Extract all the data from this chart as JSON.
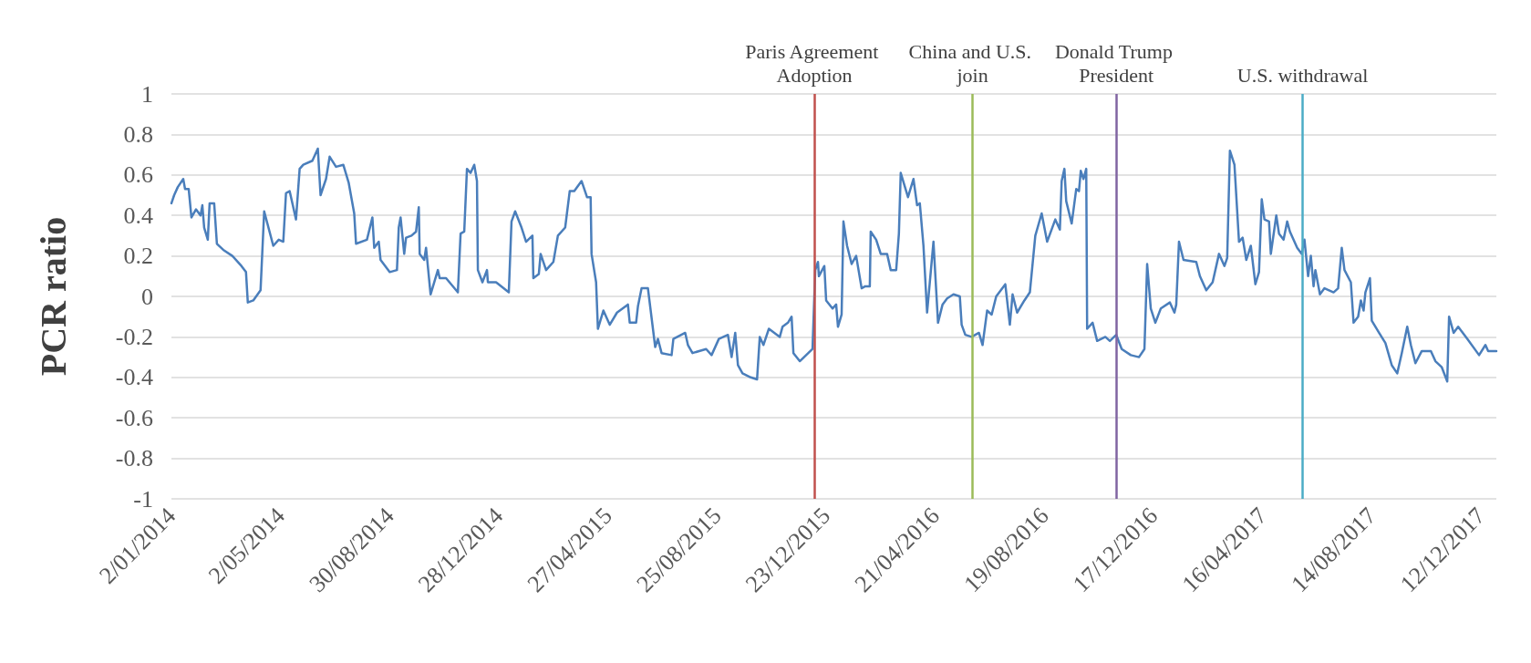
{
  "chart_data": {
    "type": "line",
    "ylabel": "PCR ratio",
    "xlim": [
      "2014-01-02",
      "2017-12-29"
    ],
    "xticks": [
      {
        "value": "2014-01-02",
        "label": "2/01/2014"
      },
      {
        "value": "2014-05-02",
        "label": "2/05/2014"
      },
      {
        "value": "2014-08-30",
        "label": "30/08/2014"
      },
      {
        "value": "2014-12-28",
        "label": "28/12/2014"
      },
      {
        "value": "2015-04-27",
        "label": "27/04/2015"
      },
      {
        "value": "2015-08-25",
        "label": "25/08/2015"
      },
      {
        "value": "2015-12-23",
        "label": "23/12/2015"
      },
      {
        "value": "2016-04-21",
        "label": "21/04/2016"
      },
      {
        "value": "2016-08-19",
        "label": "19/08/2016"
      },
      {
        "value": "2016-12-17",
        "label": "17/12/2016"
      },
      {
        "value": "2017-04-16",
        "label": "16/04/2017"
      },
      {
        "value": "2017-08-14",
        "label": "14/08/2017"
      },
      {
        "value": "2017-12-12",
        "label": "12/12/2017"
      }
    ],
    "ylim": [
      -1,
      1
    ],
    "yticks": [
      -1,
      -0.8,
      -0.6,
      -0.4,
      -0.2,
      0,
      0.2,
      0.4,
      0.6,
      0.8,
      1
    ],
    "grid": "y",
    "marker": "none",
    "line_style": "solid",
    "ref_lines": [
      {
        "axis": "x",
        "value": "2015-12-10",
        "label": "Paris Agreement Adoption",
        "color": "#c0504d"
      },
      {
        "axis": "x",
        "value": "2016-06-01",
        "label": "China and U.S. join",
        "color": "#9bbb59"
      },
      {
        "axis": "x",
        "value": "2016-11-06",
        "label": "Donald Trump President",
        "color": "#8064a2"
      },
      {
        "axis": "x",
        "value": "2017-05-30",
        "label": "U.S. withdrawal",
        "color": "#4bacc6"
      }
    ],
    "series": [
      {
        "color": "#4a7ebb",
        "x": [
          "2014-01-02",
          "2014-01-05",
          "2014-01-09",
          "2014-01-15",
          "2014-01-17",
          "2014-01-21",
          "2014-01-24",
          "2014-01-29",
          "2014-02-03",
          "2014-02-05",
          "2014-02-07",
          "2014-02-11",
          "2014-02-13",
          "2014-02-18",
          "2014-02-21",
          "2014-02-28",
          "2014-03-10",
          "2014-03-20",
          "2014-03-25",
          "2014-03-27",
          "2014-04-02",
          "2014-04-10",
          "2014-04-14",
          "2014-04-24",
          "2014-04-30",
          "2014-05-05",
          "2014-05-08",
          "2014-05-12",
          "2014-05-19",
          "2014-05-23",
          "2014-05-27",
          "2014-06-06",
          "2014-06-12",
          "2014-06-15",
          "2014-06-21",
          "2014-06-25",
          "2014-07-02",
          "2014-07-10",
          "2014-07-16",
          "2014-07-22",
          "2014-07-24",
          "2014-08-05",
          "2014-08-11",
          "2014-08-13",
          "2014-08-18",
          "2014-08-20",
          "2014-08-30",
          "2014-09-07",
          "2014-09-09",
          "2014-09-11",
          "2014-09-15",
          "2014-09-17",
          "2014-09-23",
          "2014-09-28",
          "2014-10-01",
          "2014-10-02",
          "2014-10-07",
          "2014-10-09",
          "2014-10-14",
          "2014-10-22",
          "2014-10-24",
          "2014-10-31",
          "2014-11-13",
          "2014-11-16",
          "2014-11-20",
          "2014-11-23",
          "2014-11-27",
          "2014-12-01",
          "2014-12-04",
          "2014-12-05",
          "2014-12-10",
          "2014-12-15",
          "2014-12-16",
          "2014-12-25",
          "2015-01-08",
          "2015-01-11",
          "2015-01-15",
          "2015-01-22",
          "2015-01-27",
          "2015-02-03",
          "2015-02-04",
          "2015-02-10",
          "2015-02-12",
          "2015-02-18",
          "2015-02-26",
          "2015-03-03",
          "2015-03-11",
          "2015-03-16",
          "2015-03-21",
          "2015-03-29",
          "2015-04-04",
          "2015-04-08",
          "2015-04-09",
          "2015-04-14",
          "2015-04-16",
          "2015-04-22",
          "2015-04-29",
          "2015-05-07",
          "2015-05-19",
          "2015-05-21",
          "2015-05-28",
          "2015-05-30",
          "2015-06-03",
          "2015-06-10",
          "2015-06-18",
          "2015-06-21",
          "2015-06-25",
          "2015-07-06",
          "2015-07-08",
          "2015-07-21",
          "2015-07-24",
          "2015-07-29",
          "2015-08-13",
          "2015-08-19",
          "2015-08-27",
          "2015-09-06",
          "2015-09-10",
          "2015-09-14",
          "2015-09-17",
          "2015-09-22",
          "2015-10-01",
          "2015-10-08",
          "2015-10-11",
          "2015-10-15",
          "2015-10-21",
          "2015-11-02",
          "2015-11-05",
          "2015-11-11",
          "2015-11-15",
          "2015-11-17",
          "2015-11-24",
          "2015-12-01",
          "2015-12-08",
          "2015-12-11",
          "2015-12-14",
          "2015-12-15",
          "2015-12-21",
          "2015-12-23",
          "2015-12-30",
          "2016-01-03",
          "2016-01-05",
          "2016-01-09",
          "2016-01-11",
          "2016-01-15",
          "2016-01-20",
          "2016-01-25",
          "2016-01-31",
          "2016-02-04",
          "2016-02-09",
          "2016-02-10",
          "2016-02-16",
          "2016-02-21",
          "2016-02-28",
          "2016-03-03",
          "2016-03-09",
          "2016-03-12",
          "2016-03-14",
          "2016-03-22",
          "2016-03-28",
          "2016-04-01",
          "2016-04-04",
          "2016-04-08",
          "2016-04-12",
          "2016-04-19",
          "2016-04-24",
          "2016-04-29",
          "2016-05-04",
          "2016-05-11",
          "2016-05-18",
          "2016-05-20",
          "2016-05-24",
          "2016-05-31",
          "2016-06-08",
          "2016-06-12",
          "2016-06-17",
          "2016-06-22",
          "2016-06-27",
          "2016-07-07",
          "2016-07-12",
          "2016-07-15",
          "2016-07-20",
          "2016-07-28",
          "2016-08-03",
          "2016-08-09",
          "2016-08-16",
          "2016-08-22",
          "2016-08-31",
          "2016-09-05",
          "2016-09-07",
          "2016-09-10",
          "2016-09-12",
          "2016-09-18",
          "2016-09-23",
          "2016-09-26",
          "2016-09-28",
          "2016-10-01",
          "2016-10-04",
          "2016-10-05",
          "2016-10-11",
          "2016-10-16",
          "2016-10-25",
          "2016-10-30",
          "2016-11-06",
          "2016-11-12",
          "2016-11-22",
          "2016-12-01",
          "2016-12-07",
          "2016-12-10",
          "2016-12-14",
          "2016-12-19",
          "2016-12-25",
          "2017-01-04",
          "2017-01-09",
          "2017-01-11",
          "2017-01-14",
          "2017-01-19",
          "2017-02-02",
          "2017-02-06",
          "2017-02-13",
          "2017-02-20",
          "2017-02-27",
          "2017-03-05",
          "2017-03-08",
          "2017-03-11",
          "2017-03-16",
          "2017-03-21",
          "2017-03-25",
          "2017-03-29",
          "2017-04-03",
          "2017-04-08",
          "2017-04-12",
          "2017-04-15",
          "2017-04-18",
          "2017-04-23",
          "2017-04-25",
          "2017-05-01",
          "2017-05-04",
          "2017-05-09",
          "2017-05-13",
          "2017-05-16",
          "2017-05-24",
          "2017-05-29",
          "2017-06-01",
          "2017-06-05",
          "2017-06-08",
          "2017-06-11",
          "2017-06-13",
          "2017-06-18",
          "2017-06-23",
          "2017-07-03",
          "2017-07-08",
          "2017-07-12",
          "2017-07-15",
          "2017-07-22",
          "2017-07-25",
          "2017-07-30",
          "2017-08-02",
          "2017-08-05",
          "2017-08-07",
          "2017-08-12",
          "2017-08-14",
          "2017-08-22",
          "2017-08-29",
          "2017-09-05",
          "2017-09-11",
          "2017-09-16",
          "2017-09-22",
          "2017-09-26",
          "2017-10-01",
          "2017-10-08",
          "2017-10-18",
          "2017-10-23",
          "2017-10-30",
          "2017-11-05",
          "2017-11-07",
          "2017-11-12",
          "2017-11-17",
          "2017-11-27",
          "2017-12-10",
          "2017-12-17",
          "2017-12-20",
          "2017-12-29"
        ],
        "values": [
          0.46,
          0.5,
          0.54,
          0.58,
          0.53,
          0.53,
          0.39,
          0.43,
          0.4,
          0.45,
          0.34,
          0.28,
          0.46,
          0.46,
          0.26,
          0.23,
          0.2,
          0.15,
          0.12,
          -0.03,
          -0.02,
          0.03,
          0.42,
          0.25,
          0.28,
          0.27,
          0.51,
          0.52,
          0.38,
          0.63,
          0.65,
          0.67,
          0.73,
          0.5,
          0.58,
          0.69,
          0.64,
          0.65,
          0.56,
          0.41,
          0.26,
          0.28,
          0.39,
          0.24,
          0.27,
          0.18,
          0.12,
          0.13,
          0.34,
          0.39,
          0.21,
          0.29,
          0.3,
          0.32,
          0.44,
          0.21,
          0.18,
          0.24,
          0.01,
          0.13,
          0.09,
          0.09,
          0.02,
          0.31,
          0.32,
          0.63,
          0.61,
          0.65,
          0.57,
          0.13,
          0.07,
          0.13,
          0.07,
          0.07,
          0.02,
          0.37,
          0.42,
          0.34,
          0.27,
          0.3,
          0.09,
          0.11,
          0.21,
          0.13,
          0.17,
          0.3,
          0.34,
          0.52,
          0.52,
          0.57,
          0.49,
          0.49,
          0.21,
          0.07,
          -0.16,
          -0.07,
          -0.14,
          -0.08,
          -0.04,
          -0.13,
          -0.13,
          -0.05,
          0.04,
          0.04,
          -0.25,
          -0.21,
          -0.28,
          -0.29,
          -0.21,
          -0.18,
          -0.24,
          -0.28,
          -0.26,
          -0.29,
          -0.21,
          -0.19,
          -0.3,
          -0.18,
          -0.34,
          -0.38,
          -0.4,
          -0.41,
          -0.2,
          -0.24,
          -0.16,
          -0.2,
          -0.15,
          -0.13,
          -0.1,
          -0.28,
          -0.32,
          -0.29,
          -0.26,
          0.13,
          0.17,
          0.1,
          0.15,
          -0.02,
          -0.06,
          -0.04,
          -0.15,
          -0.09,
          0.37,
          0.25,
          0.16,
          0.2,
          0.04,
          0.05,
          0.05,
          0.32,
          0.28,
          0.21,
          0.21,
          0.13,
          0.13,
          0.31,
          0.61,
          0.49,
          0.58,
          0.45,
          0.46,
          0.25,
          -0.08,
          0.27,
          -0.13,
          -0.04,
          -0.01,
          0.01,
          0,
          -0.14,
          -0.19,
          -0.2,
          -0.18,
          -0.24,
          -0.07,
          -0.09,
          0,
          0.06,
          -0.14,
          0.01,
          -0.08,
          -0.02,
          0.02,
          0.3,
          0.41,
          0.27,
          0.38,
          0.33,
          0.57,
          0.63,
          0.47,
          0.36,
          0.53,
          0.52,
          0.62,
          0.58,
          0.63,
          -0.16,
          -0.13,
          -0.22,
          -0.2,
          -0.22,
          -0.19,
          -0.26,
          -0.29,
          -0.3,
          -0.26,
          0.16,
          -0.06,
          -0.13,
          -0.06,
          -0.03,
          -0.08,
          -0.04,
          0.27,
          0.18,
          0.17,
          0.1,
          0.03,
          0.07,
          0.21,
          0.15,
          0.19,
          0.72,
          0.65,
          0.27,
          0.29,
          0.18,
          0.25,
          0.06,
          0.12,
          0.48,
          0.38,
          0.37,
          0.21,
          0.4,
          0.31,
          0.28,
          0.37,
          0.32,
          0.24,
          0.21,
          0.28,
          0.1,
          0.2,
          0.05,
          0.13,
          0.01,
          0.04,
          0.02,
          0.04,
          0.24,
          0.13,
          0.07,
          -0.13,
          -0.1,
          -0.02,
          -0.07,
          0.02,
          0.09,
          -0.12,
          -0.18,
          -0.23,
          -0.34,
          -0.38,
          -0.28,
          -0.15,
          -0.24,
          -0.33,
          -0.27,
          -0.27,
          -0.32,
          -0.35,
          -0.42,
          -0.1,
          -0.18,
          -0.15,
          -0.21,
          -0.29,
          -0.24,
          -0.27,
          -0.27
        ]
      }
    ]
  }
}
